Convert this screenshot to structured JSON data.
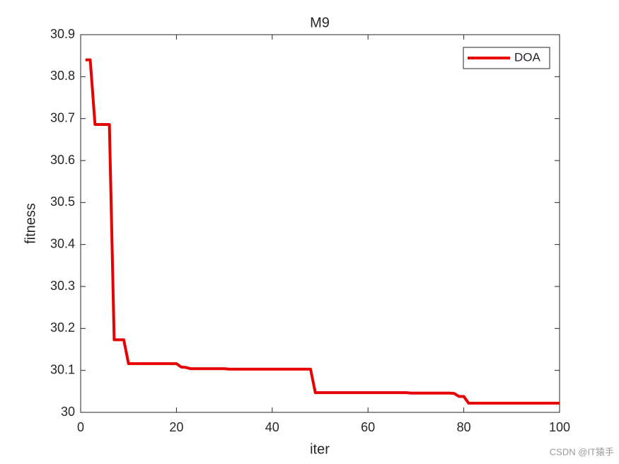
{
  "chart_data": {
    "type": "line",
    "title": "M9",
    "xlabel": "iter",
    "ylabel": "fitness",
    "x": [
      1,
      2,
      3,
      6,
      7,
      9,
      10,
      20,
      21,
      22,
      23,
      30,
      31,
      48,
      49,
      68,
      69,
      77,
      78,
      79,
      80,
      81,
      100
    ],
    "series": [
      {
        "name": "DOA",
        "color": "#e60000",
        "values": [
          30.84,
          30.84,
          30.686,
          30.686,
          30.173,
          30.173,
          30.116,
          30.116,
          30.108,
          30.107,
          30.104,
          30.104,
          30.103,
          30.103,
          30.047,
          30.047,
          30.046,
          30.046,
          30.045,
          30.038,
          30.038,
          30.022,
          30.022
        ]
      }
    ],
    "xlim": [
      0,
      100
    ],
    "xticks": [
      0,
      20,
      40,
      60,
      80,
      100
    ],
    "ylim": [
      30,
      30.9
    ],
    "yticks": [
      30,
      30.1,
      30.2,
      30.3,
      30.4,
      30.5,
      30.6,
      30.7,
      30.8,
      30.9
    ],
    "legend": "upper right",
    "grid": false
  },
  "watermark": "CSDN @IT猿手"
}
